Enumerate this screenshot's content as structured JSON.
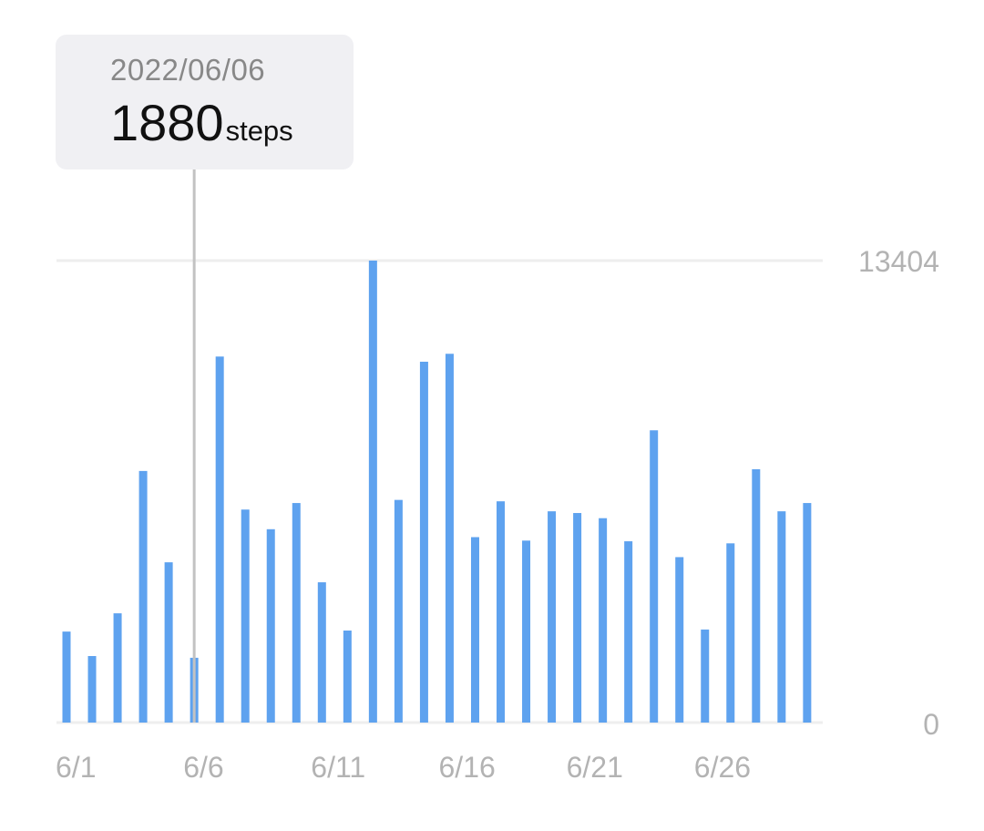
{
  "tooltip": {
    "date": "2022/06/06",
    "value": "1880",
    "unit": "steps"
  },
  "colors": {
    "bar": "#5ea2ef",
    "grid": "#eeeeee",
    "cursor_line": "#c2c2c2",
    "label": "#b3b3b3"
  },
  "chart_data": {
    "type": "bar",
    "ylim": [
      0,
      13404
    ],
    "yticks": [
      "13404",
      "0"
    ],
    "xticks": [
      "6/1",
      "6/6",
      "6/11",
      "6/16",
      "6/21",
      "6/26"
    ],
    "categories": [
      "6/1",
      "6/2",
      "6/3",
      "6/4",
      "6/5",
      "6/6",
      "6/7",
      "6/8",
      "6/9",
      "6/10",
      "6/11",
      "6/12",
      "6/13",
      "6/14",
      "6/15",
      "6/16",
      "6/17",
      "6/18",
      "6/19",
      "6/20",
      "6/21",
      "6/22",
      "6/23",
      "6/24",
      "6/25",
      "6/26",
      "6/27",
      "6/28",
      "6/29",
      "6/30"
    ],
    "values": [
      2640,
      1930,
      3170,
      7300,
      4650,
      1880,
      10620,
      6180,
      5610,
      6370,
      4070,
      2670,
      13404,
      6460,
      10470,
      10700,
      5380,
      6420,
      5280,
      6130,
      6080,
      5930,
      5260,
      8480,
      4800,
      2700,
      5200,
      7350,
      6130,
      6370
    ],
    "selected_category": "6/6",
    "grid": true
  }
}
